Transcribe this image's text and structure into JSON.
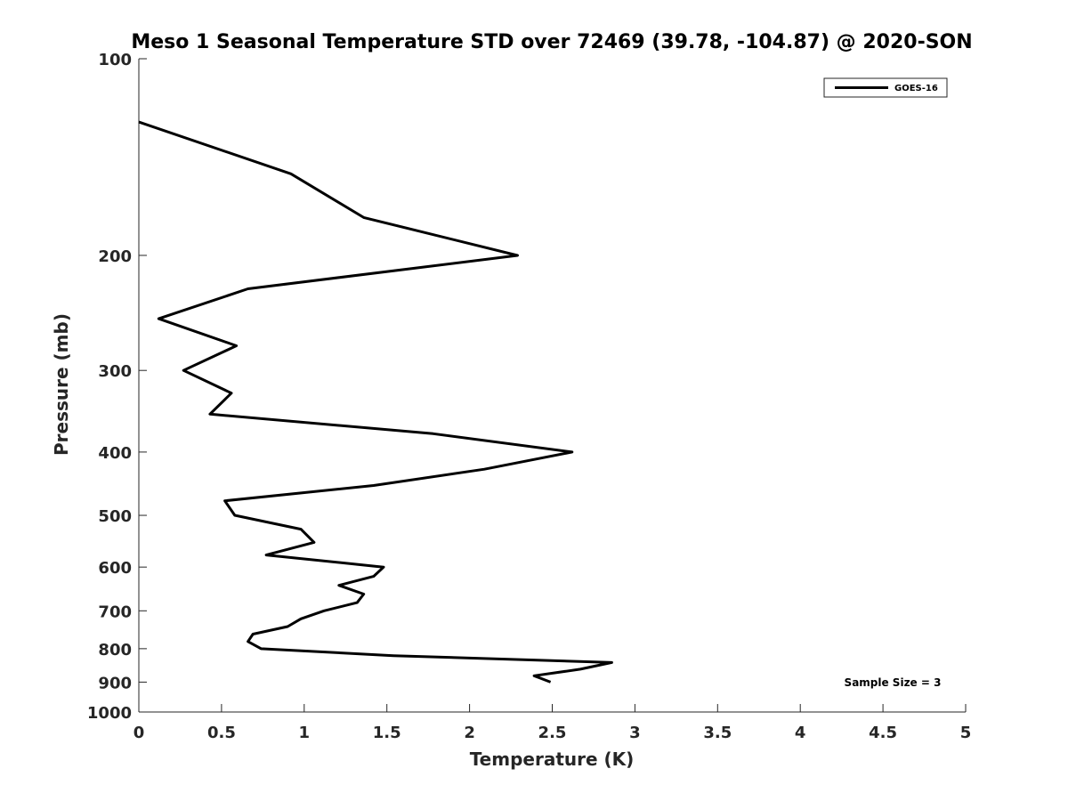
{
  "chart_data": {
    "type": "line",
    "title": "Meso 1 Seasonal Temperature STD over 72469 (39.78, -104.87) @ 2020-SON",
    "xlabel": "Temperature (K)",
    "ylabel": "Pressure (mb)",
    "xlim": [
      0,
      5
    ],
    "ylim": [
      100,
      1000
    ],
    "y_scale": "log",
    "y_reversed": true,
    "grid": false,
    "legend_position": "top-right",
    "x_ticks": [
      "0",
      "0.5",
      "1",
      "1.5",
      "2",
      "2.5",
      "3",
      "3.5",
      "4",
      "4.5",
      "5"
    ],
    "y_ticks": [
      "100",
      "200",
      "300",
      "400",
      "500",
      "600",
      "700",
      "800",
      "900",
      "1000"
    ],
    "series": [
      {
        "name": "GOES-16",
        "color": "#000000",
        "points": [
          [
            0.0,
            125
          ],
          [
            0.92,
            150
          ],
          [
            1.36,
            175
          ],
          [
            2.29,
            200
          ],
          [
            0.66,
            225
          ],
          [
            0.12,
            250
          ],
          [
            0.59,
            275
          ],
          [
            0.27,
            300
          ],
          [
            0.56,
            325
          ],
          [
            0.43,
            350
          ],
          [
            1.78,
            375
          ],
          [
            2.62,
            400
          ],
          [
            2.09,
            425
          ],
          [
            1.42,
            450
          ],
          [
            0.52,
            475
          ],
          [
            0.58,
            500
          ],
          [
            0.98,
            525
          ],
          [
            1.06,
            550
          ],
          [
            0.77,
            575
          ],
          [
            1.48,
            600
          ],
          [
            1.42,
            620
          ],
          [
            1.21,
            640
          ],
          [
            1.36,
            660
          ],
          [
            1.32,
            680
          ],
          [
            1.12,
            700
          ],
          [
            0.98,
            720
          ],
          [
            0.9,
            740
          ],
          [
            0.69,
            760
          ],
          [
            0.66,
            780
          ],
          [
            0.74,
            800
          ],
          [
            1.54,
            820
          ],
          [
            2.86,
            840
          ],
          [
            2.67,
            860
          ],
          [
            2.39,
            880
          ],
          [
            2.49,
            900
          ]
        ]
      }
    ],
    "annotation": "Sample Size = 3"
  }
}
